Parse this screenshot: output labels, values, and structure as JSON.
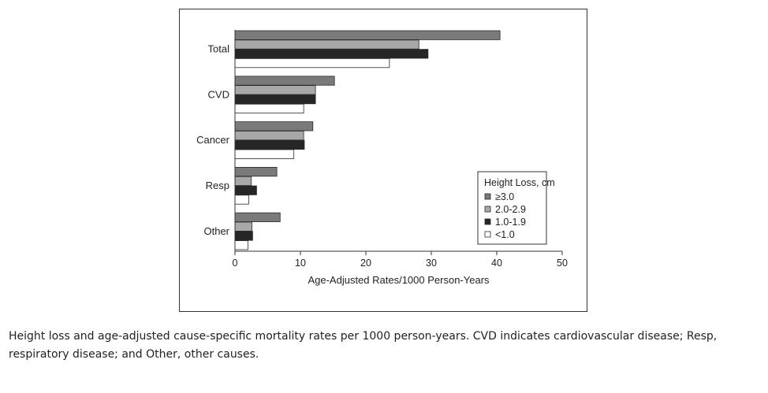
{
  "chart_data": {
    "type": "bar",
    "orientation": "horizontal",
    "categories": [
      "Total",
      "CVD",
      "Cancer",
      "Resp",
      "Other"
    ],
    "series": [
      {
        "name": "≥3.0",
        "values": [
          40.5,
          15.2,
          11.9,
          6.4,
          6.9
        ],
        "color": "#7a7a7a"
      },
      {
        "name": "2.0-2.9",
        "values": [
          28.1,
          12.3,
          10.5,
          2.5,
          2.6
        ],
        "color": "#a8a8a8"
      },
      {
        "name": "1.0-1.9",
        "values": [
          29.5,
          12.3,
          10.6,
          3.3,
          2.7
        ],
        "color": "#262626"
      },
      {
        "name": "<1.0",
        "values": [
          23.6,
          10.5,
          9.0,
          2.1,
          2.0
        ],
        "color": "#ffffff"
      }
    ],
    "xlabel": "Age-Adjusted Rates/1000 Person-Years",
    "xlim": [
      0,
      50
    ],
    "xticks": [
      "0",
      "10",
      "20",
      "30",
      "40",
      "50"
    ],
    "legend": {
      "title": "Height Loss, cm",
      "position": "bottom-right"
    },
    "grid": false
  },
  "caption": "Height loss and age-adjusted cause-specific mortality rates per 1000 person-years. CVD indicates cardiovascular disease; Resp, respiratory disease; and Other, other causes."
}
